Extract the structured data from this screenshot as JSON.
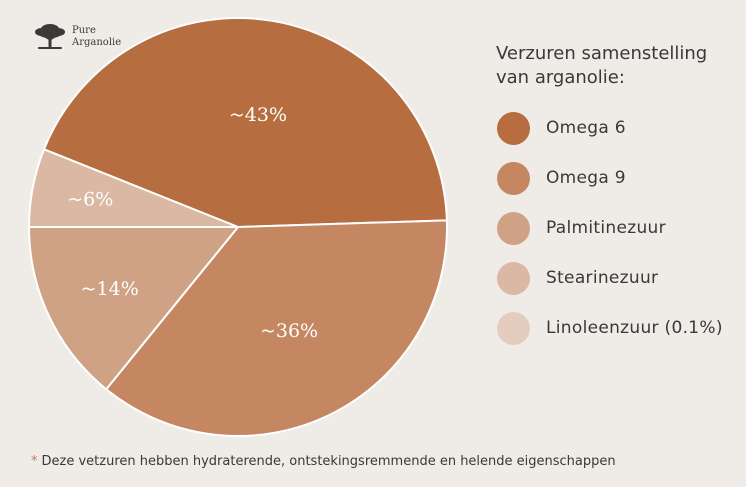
{
  "logo": {
    "line1": "Pure",
    "line2": "Arganolie"
  },
  "legend": {
    "title_line1": "Verzuren samenstelling",
    "title_line2": "van arganolie:",
    "items": [
      {
        "label": "Omega 6",
        "color": "#b66d3f"
      },
      {
        "label": "Omega 9",
        "color": "#c48762"
      },
      {
        "label": "Palmitinezuur",
        "color": "#cfa286"
      },
      {
        "label": "Stearinezuur",
        "color": "#dab8a3"
      },
      {
        "label": "Linoleenzuur (0.1%)",
        "color": "#e4cdbe"
      }
    ]
  },
  "footnote": {
    "marker": "*",
    "text": "Deze vetzuren hebben hydraterende, ontstekingsremmende en helende eigenschappen"
  },
  "chart_data": {
    "type": "pie",
    "slices": [
      {
        "name": "Omega 6",
        "value": 43,
        "label": "~43%",
        "color": "#b66d3f"
      },
      {
        "name": "Omega 9",
        "value": 36,
        "label": "~36%",
        "color": "#c48762"
      },
      {
        "name": "Palmitinezuur",
        "value": 14,
        "label": "~14%",
        "color": "#cfa286"
      },
      {
        "name": "Stearinezuur",
        "value": 6,
        "label": "~6%",
        "color": "#dab8a3"
      }
    ],
    "legend_position": "right"
  }
}
